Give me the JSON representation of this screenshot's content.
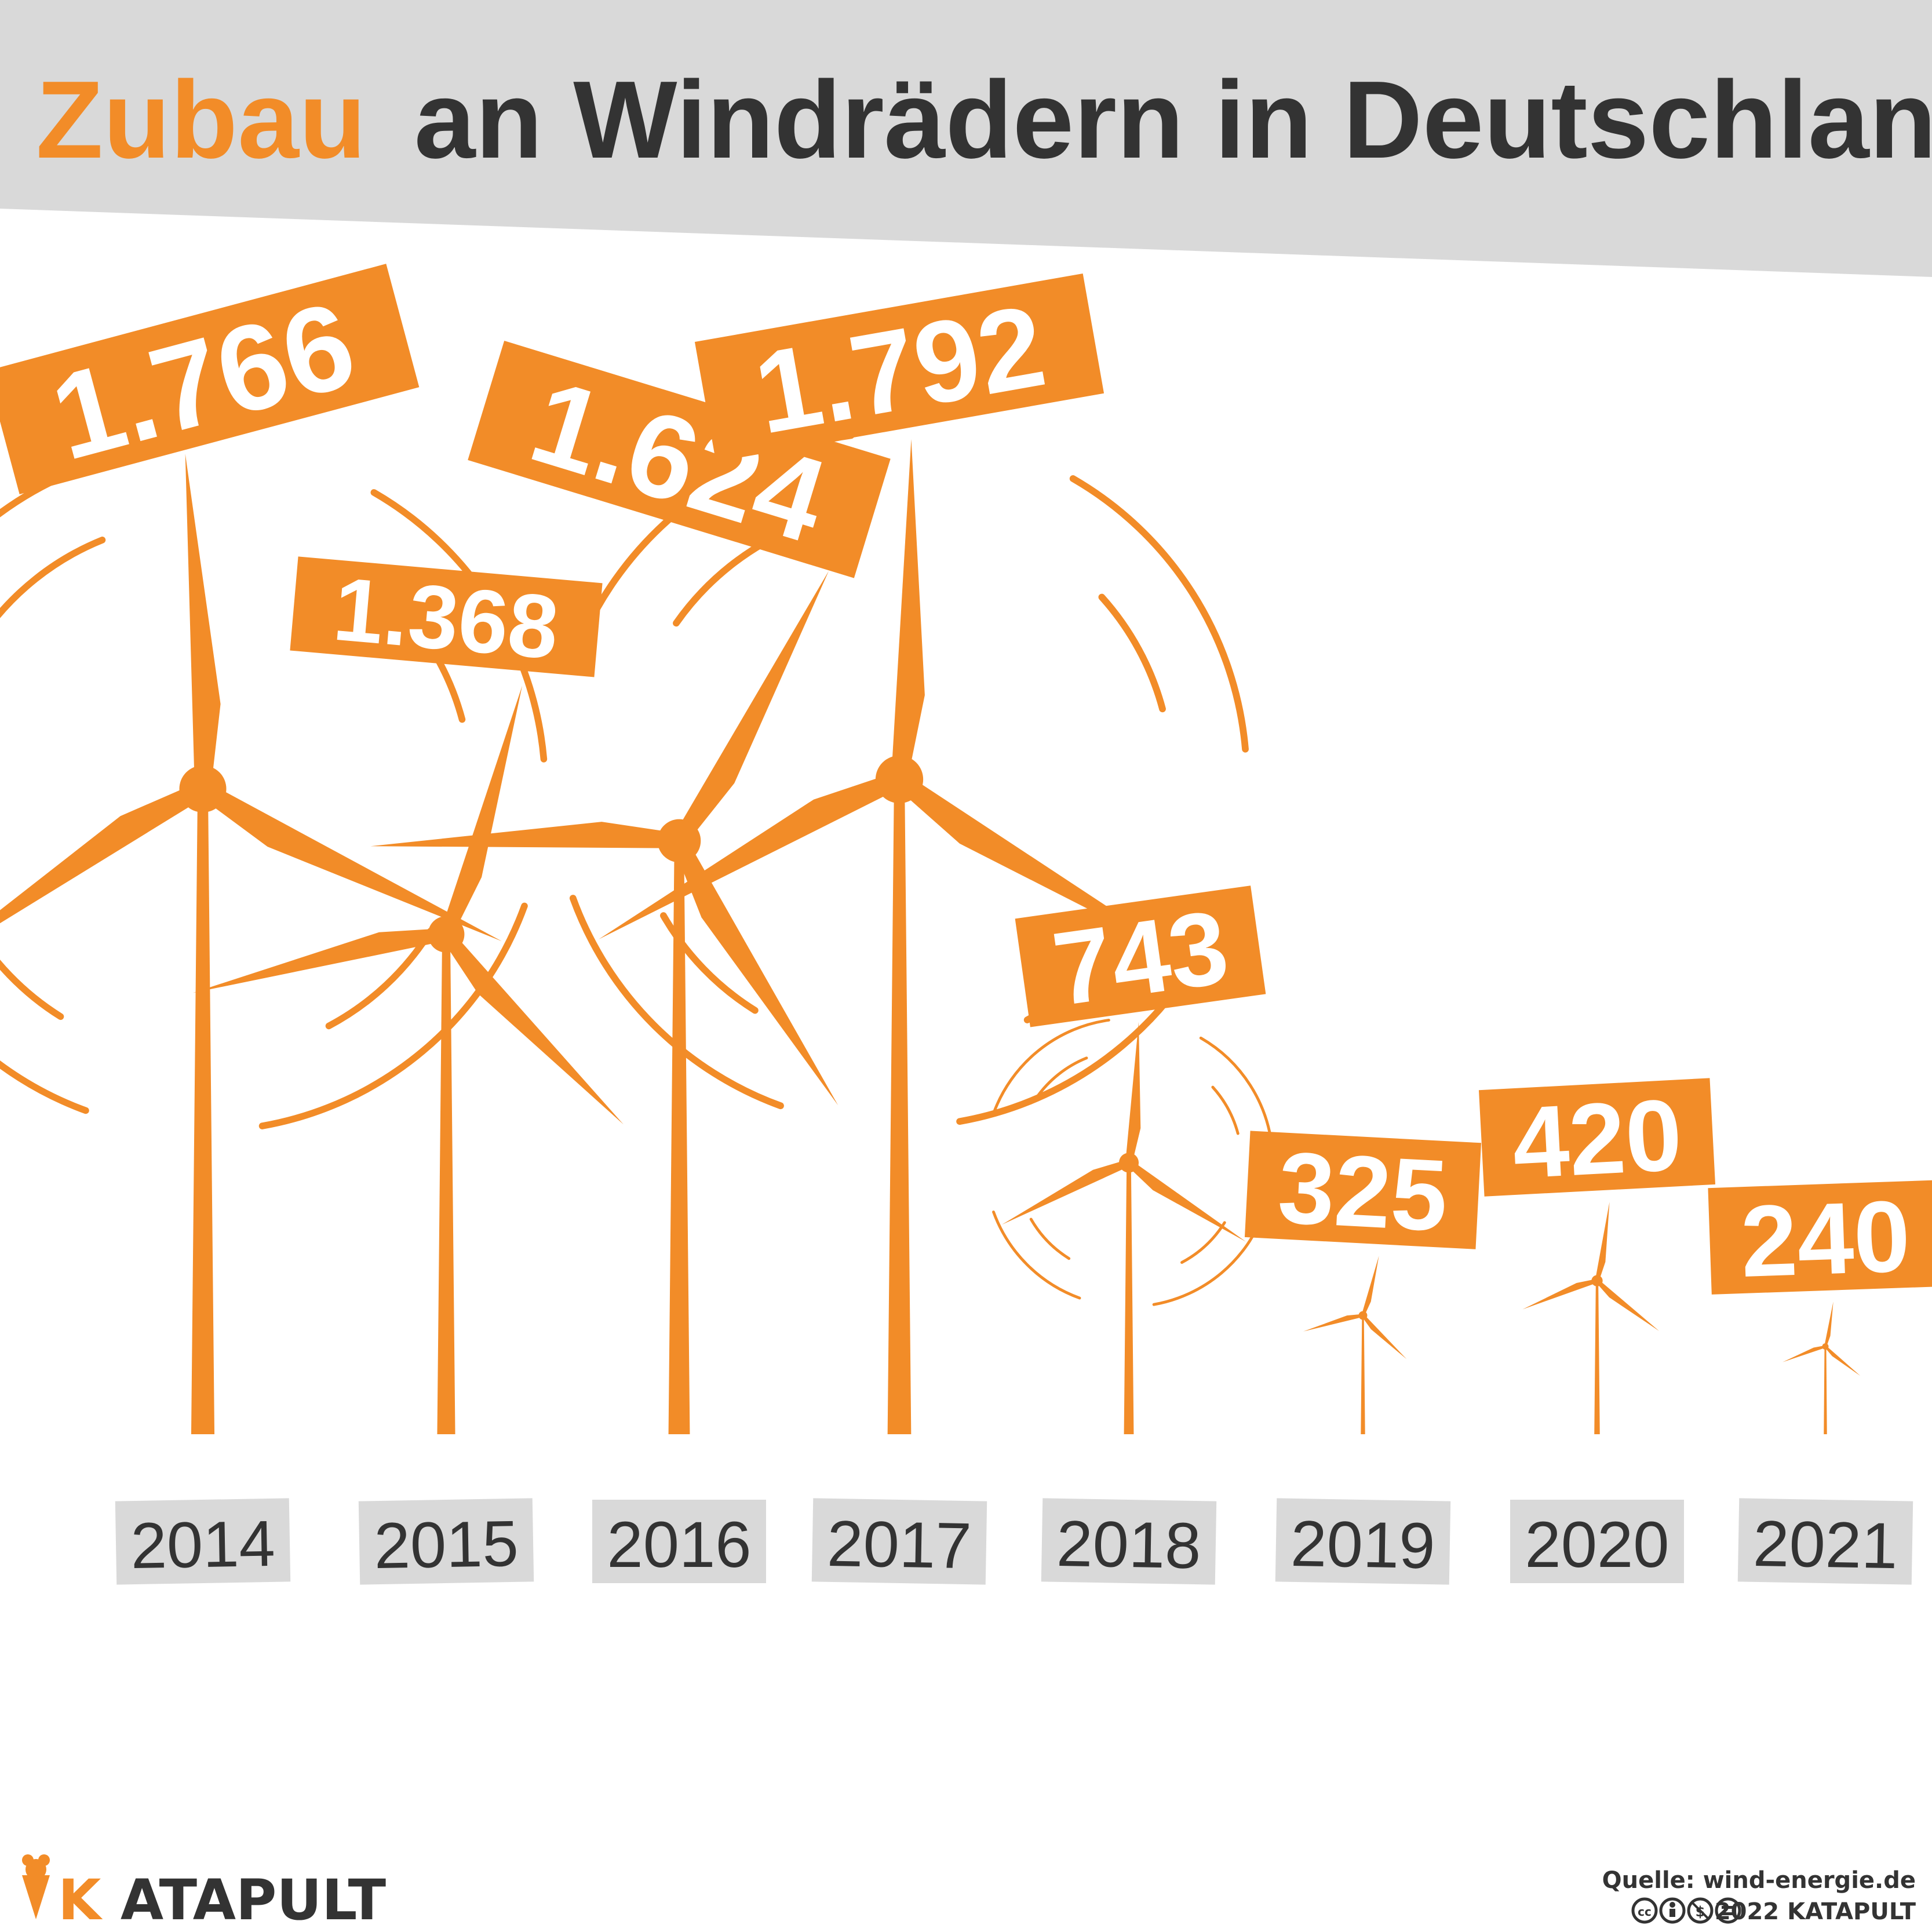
{
  "title": {
    "highlight": "Zubau",
    "rest": "an Windrädern in Deutschland"
  },
  "colors": {
    "accent": "#F28C28",
    "dark": "#333333",
    "band": "#D9D9D9",
    "white": "#FFFFFF"
  },
  "chart_data": {
    "type": "bar",
    "categories": [
      "2014",
      "2015",
      "2016",
      "2017",
      "2018",
      "2019",
      "2020",
      "2021"
    ],
    "values": [
      1766,
      1368,
      1624,
      1792,
      743,
      325,
      420,
      240
    ],
    "value_labels": [
      "1.766",
      "1.368",
      "1.624",
      "1.792",
      "743",
      "325",
      "420",
      "240"
    ],
    "title": "Zubau an Windrädern in Deutschland",
    "xlabel": "",
    "ylabel": "",
    "marker": "wind-turbine-icon",
    "grid": false
  },
  "brand": {
    "name_first": "K",
    "name_rest": "ATAPULT",
    "logo_icon": "katapult-cone-icon"
  },
  "footer": {
    "source": "Quelle: wind-energie.de",
    "copyright": "2022 KATAPULT",
    "license_icons": [
      "cc-icon",
      "by-icon",
      "nc-icon",
      "nd-icon"
    ]
  }
}
